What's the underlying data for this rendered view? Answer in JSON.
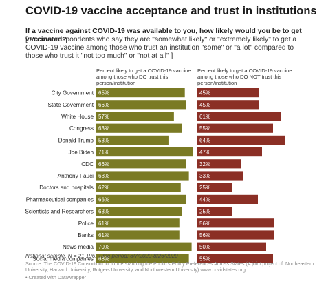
{
  "title": "COVID-19 vaccine acceptance and trust in institutions",
  "question": "If a vaccine against COVID-19 was available to you, how likely would you be to get vaccinated?",
  "subtitle": "[ Percent respondents who say they are \"somewhat likely\" or \"extremely likely\" to get a COVID-19 vaccine among those who trust an institution \"some\" or \"a lot\" compared to those who trust it \"not too much\" or \"not at all\" ]",
  "footer_note": "National sample, N = 21,196, Time period: 8/7/2020-8/26/2020",
  "source": "Source: The COVID-19 Consortium for Understanding the Public's Policy Preferences Across States (A joint project of: Northeastern University, Harvard University, Rutgers University, and Northwestern University) www.covidstates.org",
  "credit": "• Created with Datawrapper",
  "chart_data": {
    "type": "bar",
    "orientation": "horizontal",
    "categories": [
      "City Government",
      "State Government",
      "White House",
      "Congress",
      "Donald Trump",
      "Joe Biden",
      "CDC",
      "Anthony Fauci",
      "Doctors and hospitals",
      "Pharmaceutical companies",
      "Scientists and Researchers",
      "Police",
      "Banks",
      "News media",
      "Social media companies"
    ],
    "value_suffix": "%",
    "xlim": [
      0,
      100
    ],
    "series": [
      {
        "name": "Percent likely to get a COVID-19 vaccine among those who DO trust this person/institution",
        "color": "#7a7a24",
        "values": [
          65,
          66,
          57,
          63,
          53,
          71,
          66,
          68,
          62,
          66,
          63,
          61,
          61,
          70,
          68
        ]
      },
      {
        "name": "Percent likely to get a COVID-19 vaccine among those who DO NOT trust this person/institution",
        "color": "#8b2f25",
        "values": [
          45,
          45,
          61,
          55,
          64,
          47,
          32,
          33,
          25,
          44,
          25,
          56,
          56,
          50,
          55
        ]
      }
    ]
  }
}
